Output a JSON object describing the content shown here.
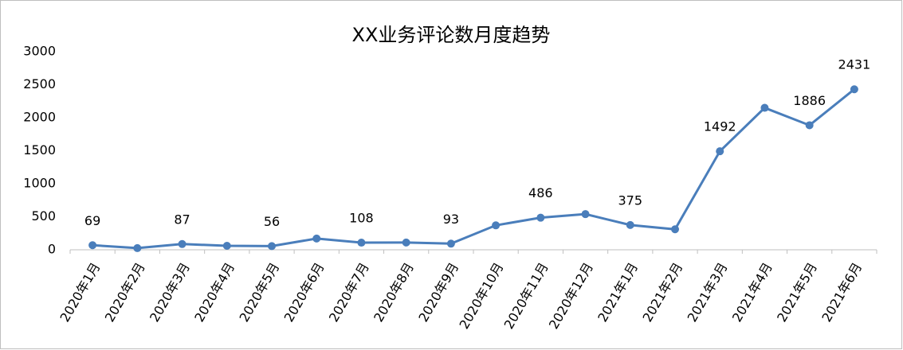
{
  "chart_data": {
    "type": "line",
    "title": "XX业务评论数月度趋势",
    "categories": [
      "2020年1月",
      "2020年2月",
      "2020年3月",
      "2020年4月",
      "2020年5月",
      "2020年6月",
      "2020年7月",
      "2020年8月",
      "2020年9月",
      "2020年10月",
      "2020年11月",
      "2020年12月",
      "2021年1月",
      "2021年2月",
      "2021年3月",
      "2021年4月",
      "2021年5月",
      "2021年6月"
    ],
    "series": [
      {
        "color": "#4a7ebb",
        "values": [
          69,
          25,
          87,
          60,
          56,
          170,
          108,
          110,
          93,
          370,
          486,
          540,
          375,
          310,
          1492,
          2150,
          1886,
          2431
        ],
        "value_labels": [
          "69",
          null,
          "87",
          null,
          "56",
          null,
          "108",
          null,
          "93",
          null,
          "486",
          null,
          "375",
          null,
          "1492",
          null,
          "1886",
          "2431"
        ]
      }
    ],
    "ylim": [
      0,
      3000
    ],
    "yticks": [
      0,
      500,
      1000,
      1500,
      2000,
      2500,
      3000
    ],
    "grid": false
  }
}
